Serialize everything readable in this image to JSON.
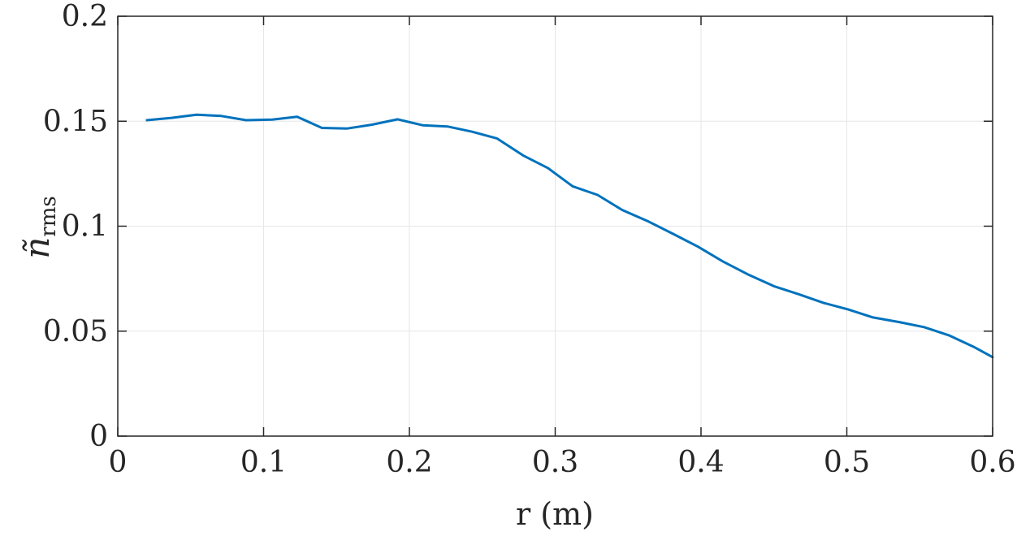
{
  "chart_data": {
    "type": "line",
    "title": "",
    "xlabel": "r (m)",
    "ylabel": "ñ",
    "ylabel_subscript": "rms",
    "xlim": [
      0,
      0.6
    ],
    "ylim": [
      0,
      0.2
    ],
    "xticks": [
      0,
      0.1,
      0.2,
      0.3,
      0.4,
      0.5,
      0.6
    ],
    "xtick_labels": [
      "0",
      "0.1",
      "0.2",
      "0.3",
      "0.4",
      "0.5",
      "0.6"
    ],
    "yticks": [
      0,
      0.05,
      0.1,
      0.15,
      0.2
    ],
    "ytick_labels": [
      "0",
      "0.05",
      "0.1",
      "0.15",
      "0.2"
    ],
    "grid": true,
    "series": [
      {
        "color": "#0072bd",
        "x": [
          0.02,
          0.037,
          0.054,
          0.071,
          0.088,
          0.106,
          0.123,
          0.14,
          0.157,
          0.174,
          0.192,
          0.209,
          0.226,
          0.243,
          0.26,
          0.278,
          0.295,
          0.312,
          0.329,
          0.346,
          0.364,
          0.381,
          0.398,
          0.415,
          0.432,
          0.45,
          0.467,
          0.484,
          0.501,
          0.518,
          0.536,
          0.553,
          0.57,
          0.587,
          0.6
        ],
        "y": [
          0.1505,
          0.1516,
          0.1531,
          0.1525,
          0.1505,
          0.1508,
          0.1521,
          0.1468,
          0.1465,
          0.1483,
          0.1509,
          0.1481,
          0.1475,
          0.145,
          0.1418,
          0.1337,
          0.1277,
          0.119,
          0.1149,
          0.1077,
          0.1022,
          0.0963,
          0.0902,
          0.0832,
          0.0771,
          0.0714,
          0.0676,
          0.0635,
          0.0603,
          0.0565,
          0.0543,
          0.0519,
          0.048,
          0.0425,
          0.0376
        ]
      }
    ]
  }
}
